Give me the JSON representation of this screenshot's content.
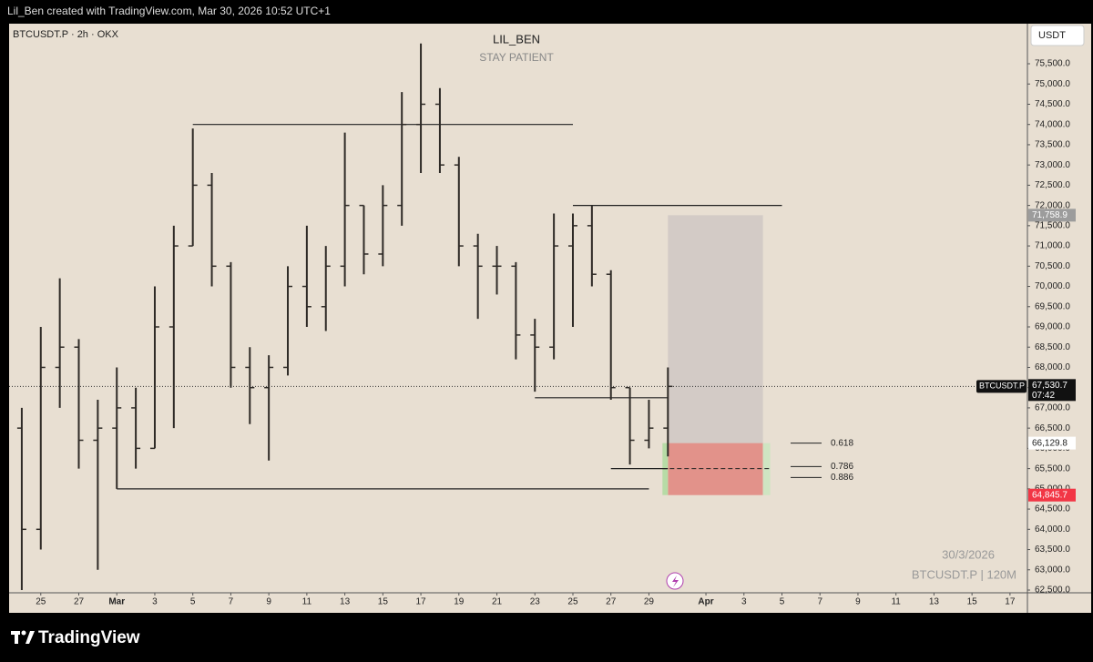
{
  "header": "Lil_Ben created with TradingView.com, Mar 30, 2026 10:52 UTC+1",
  "footer": "TradingView",
  "chart_data": {
    "type": "ohlc",
    "symbol": "BTCUSDT.P · 2h · OKX",
    "title": "LIL_BEN",
    "subtitle": "STAY PATIENT",
    "currency": "USDT",
    "watermark": [
      "30/3/2026",
      "BTCUSDT.P | 120M"
    ],
    "color": "#2e2a26",
    "background": "#e8dfd2",
    "x": [
      "2026-02-24",
      "2026-02-25",
      "2026-02-26",
      "2026-02-27",
      "2026-02-28",
      "2026-03-01",
      "2026-03-02",
      "2026-03-03",
      "2026-03-04",
      "2026-03-05",
      "2026-03-06",
      "2026-03-07",
      "2026-03-08",
      "2026-03-09",
      "2026-03-10",
      "2026-03-11",
      "2026-03-12",
      "2026-03-13",
      "2026-03-14",
      "2026-03-15",
      "2026-03-16",
      "2026-03-17",
      "2026-03-18",
      "2026-03-19",
      "2026-03-20",
      "2026-03-21",
      "2026-03-22",
      "2026-03-23",
      "2026-03-24",
      "2026-03-25",
      "2026-03-26",
      "2026-03-27",
      "2026-03-28",
      "2026-03-29",
      "2026-03-30"
    ],
    "open": [
      66500,
      64000,
      68000,
      68500,
      66200,
      66500,
      67000,
      66000,
      69000,
      71000,
      72500,
      70500,
      68000,
      67500,
      68000,
      70000,
      69500,
      70500,
      72000,
      70800,
      72000,
      74000,
      74500,
      73000,
      71000,
      70500,
      70500,
      68800,
      68500,
      71000,
      71500,
      70300,
      67500,
      66200,
      66500
    ],
    "high": [
      67000,
      69000,
      70200,
      68700,
      67200,
      68000,
      67500,
      70000,
      71500,
      73900,
      72800,
      70600,
      68500,
      68300,
      70500,
      71500,
      71000,
      73800,
      72000,
      72500,
      74800,
      76000,
      74900,
      73200,
      71300,
      71000,
      70600,
      69200,
      71800,
      71800,
      72000,
      70400,
      67500,
      67200,
      68000
    ],
    "low": [
      62500,
      63500,
      67000,
      65500,
      63000,
      65000,
      65500,
      66000,
      66500,
      71000,
      70000,
      67500,
      66600,
      65700,
      67800,
      69000,
      68900,
      70000,
      70300,
      70500,
      71500,
      72800,
      72800,
      70500,
      69200,
      69800,
      68200,
      67400,
      68200,
      69000,
      70000,
      67200,
      65600,
      66000,
      65800
    ],
    "close": [
      64000,
      68000,
      68500,
      66200,
      66500,
      67000,
      66000,
      69000,
      71000,
      72500,
      70500,
      68000,
      67500,
      68000,
      70000,
      69500,
      70500,
      72000,
      70800,
      72000,
      74000,
      74500,
      73000,
      71000,
      70500,
      70500,
      68800,
      68500,
      71000,
      71500,
      70300,
      67500,
      66200,
      66500,
      67530.7
    ],
    "xlim": [
      "2026-02-23T08:00Z",
      "2026-04-17T22:00Z"
    ],
    "ylim": [
      61960,
      76490
    ],
    "xticks": [
      {
        "value": "2026-02-25",
        "label": "25"
      },
      {
        "value": "2026-02-27",
        "label": "27"
      },
      {
        "value": "2026-03-01",
        "label": "Mar"
      },
      {
        "value": "2026-03-03",
        "label": "3"
      },
      {
        "value": "2026-03-05",
        "label": "5"
      },
      {
        "value": "2026-03-07",
        "label": "7"
      },
      {
        "value": "2026-03-09",
        "label": "9"
      },
      {
        "value": "2026-03-11",
        "label": "11"
      },
      {
        "value": "2026-03-13",
        "label": "13"
      },
      {
        "value": "2026-03-15",
        "label": "15"
      },
      {
        "value": "2026-03-17",
        "label": "17"
      },
      {
        "value": "2026-03-19",
        "label": "19"
      },
      {
        "value": "2026-03-21",
        "label": "21"
      },
      {
        "value": "2026-03-23",
        "label": "23"
      },
      {
        "value": "2026-03-25",
        "label": "25"
      },
      {
        "value": "2026-03-27",
        "label": "27"
      },
      {
        "value": "2026-03-29",
        "label": "29"
      },
      {
        "value": "2026-04-01",
        "label": "Apr"
      },
      {
        "value": "2026-04-03",
        "label": "3"
      },
      {
        "value": "2026-04-05",
        "label": "5"
      },
      {
        "value": "2026-04-07",
        "label": "7"
      },
      {
        "value": "2026-04-09",
        "label": "9"
      },
      {
        "value": "2026-04-11",
        "label": "11"
      },
      {
        "value": "2026-04-13",
        "label": "13"
      },
      {
        "value": "2026-04-15",
        "label": "15"
      },
      {
        "value": "2026-04-17",
        "label": "17"
      }
    ],
    "yticks": [
      {
        "value": 62500,
        "label": "62,500.0"
      },
      {
        "value": 63000,
        "label": "63,000.0"
      },
      {
        "value": 63500,
        "label": "63,500.0"
      },
      {
        "value": 64000,
        "label": "64,000.0"
      },
      {
        "value": 64500,
        "label": "64,500.0"
      },
      {
        "value": 65000,
        "label": "65,000.0"
      },
      {
        "value": 65500,
        "label": "65,500.0"
      },
      {
        "value": 66000,
        "label": "66,000.0"
      },
      {
        "value": 66500,
        "label": "66,500.0"
      },
      {
        "value": 67000,
        "label": "67,000.0"
      },
      {
        "value": 67500,
        "label": "67,500.0"
      },
      {
        "value": 68000,
        "label": "68,000.0"
      },
      {
        "value": 68500,
        "label": "68,500.0"
      },
      {
        "value": 69000,
        "label": "69,000.0"
      },
      {
        "value": 69500,
        "label": "69,500.0"
      },
      {
        "value": 70000,
        "label": "70,000.0"
      },
      {
        "value": 70500,
        "label": "70,500.0"
      },
      {
        "value": 71000,
        "label": "71,000.0"
      },
      {
        "value": 71500,
        "label": "71,500.0"
      },
      {
        "value": 72000,
        "label": "72,000.0"
      },
      {
        "value": 72500,
        "label": "72,500.0"
      },
      {
        "value": 73000,
        "label": "73,000.0"
      },
      {
        "value": 73500,
        "label": "73,500.0"
      },
      {
        "value": 74000,
        "label": "74,000.0"
      },
      {
        "value": 74500,
        "label": "74,500.0"
      },
      {
        "value": 75000,
        "label": "75,000.0"
      },
      {
        "value": 75500,
        "label": "75,500.0"
      }
    ],
    "levels": [
      {
        "value": 74000,
        "start": "2026-03-05",
        "end": "2026-03-25"
      },
      {
        "value": 72000,
        "start": "2026-03-25",
        "end": "2026-04-05"
      },
      {
        "value": 67250,
        "start": "2026-03-23",
        "end": "2026-03-28"
      },
      {
        "value": 67250,
        "start": "2026-03-28",
        "end": "2026-03-30"
      },
      {
        "value": 65500,
        "start": "2026-03-27",
        "end": "2026-03-30"
      },
      {
        "value": 65000,
        "start": "2026-03-01",
        "end": "2026-03-29"
      }
    ],
    "position": {
      "start": "2026-03-30",
      "end": "2026-04-04",
      "target": 71758.9,
      "entry": 66129.8,
      "stop": 64845.7,
      "dashed": 65500
    },
    "fib": [
      {
        "ratio": 0.618,
        "price": 66129.8
      },
      {
        "ratio": 0.786,
        "price": 65550
      },
      {
        "ratio": 0.886,
        "price": 65280
      }
    ],
    "price_labels": [
      {
        "value": 71758.9,
        "label": "71,758.9",
        "color": "#9c9c9c"
      },
      {
        "value": 66129.8,
        "label": "66,129.8",
        "color": "#ffffff"
      },
      {
        "value": 64845.7,
        "label": "64,845.7",
        "color": "#f23645"
      }
    ],
    "current": {
      "value": 67530.7,
      "label": "67,530.7",
      "countdown": "07:42",
      "tag": "BTCUSDT.P"
    }
  }
}
